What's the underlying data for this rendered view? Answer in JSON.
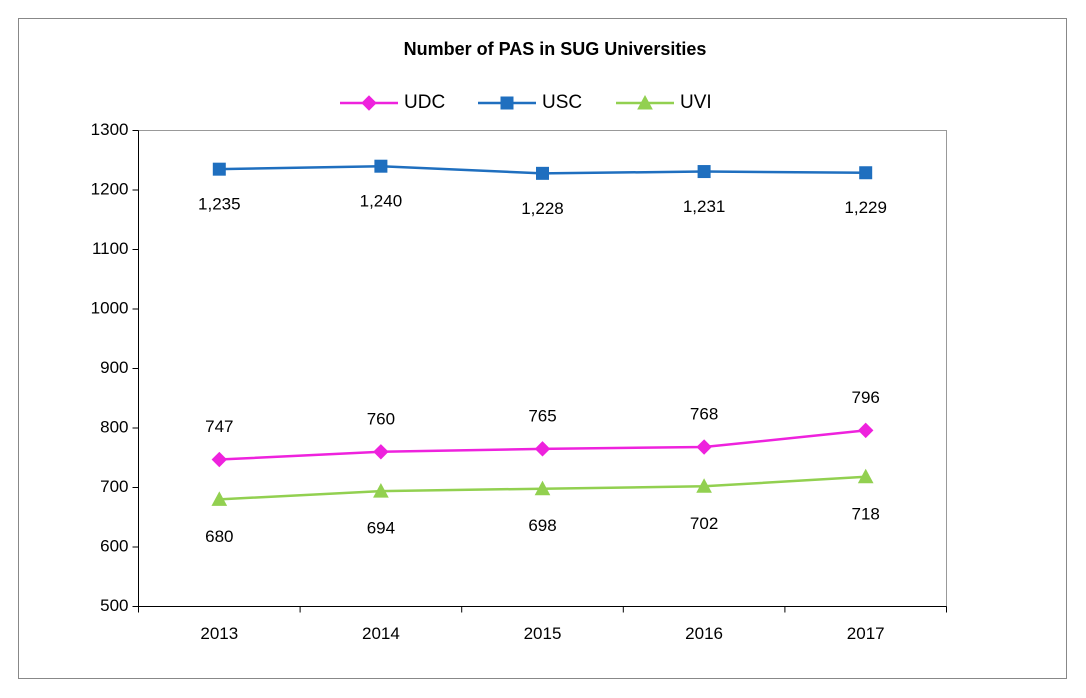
{
  "chart_data": {
    "type": "line",
    "title": "Number of PAS in SUG Universities",
    "categories": [
      "2013",
      "2014",
      "2015",
      "2016",
      "2017"
    ],
    "series": [
      {
        "name": "UDC",
        "color": "#ee22dd",
        "marker": "diamond",
        "values": [
          747,
          760,
          765,
          768,
          796
        ]
      },
      {
        "name": "USC",
        "color": "#1f6fbf",
        "marker": "square",
        "values": [
          1235,
          1240,
          1228,
          1231,
          1229
        ],
        "value_labels": [
          "1,235",
          "1,240",
          "1,228",
          "1,231",
          "1,229"
        ]
      },
      {
        "name": "UVI",
        "color": "#92d050",
        "marker": "triangle",
        "values": [
          680,
          694,
          698,
          702,
          718
        ]
      }
    ],
    "ylim": [
      500,
      1300
    ],
    "yticks": [
      500,
      600,
      700,
      800,
      900,
      1000,
      1100,
      1200,
      1300
    ],
    "grid": false,
    "legend": "top"
  }
}
